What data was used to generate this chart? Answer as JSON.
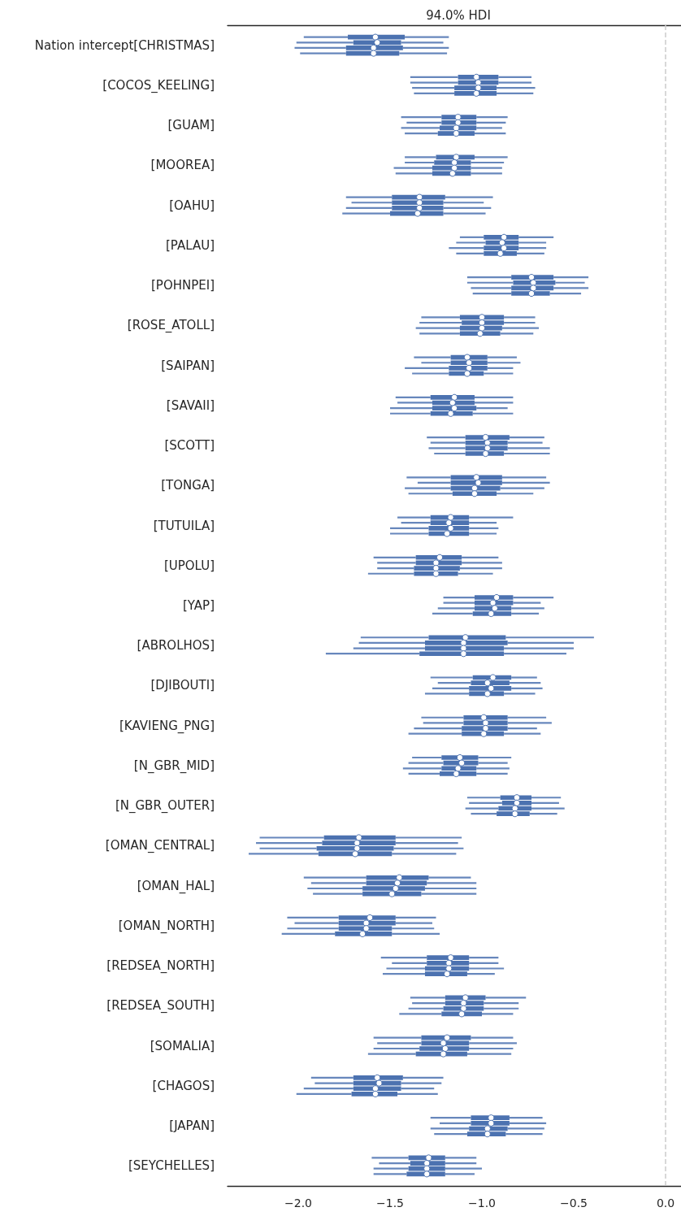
{
  "chart_data": {
    "type": "box",
    "orientation": "horizontal",
    "title": "94.0% HDI",
    "categories": [
      "Nation intercept[CHRISTMAS]",
      "[COCOS_KEELING]",
      "[GUAM]",
      "[MOOREA]",
      "[OAHU]",
      "[PALAU]",
      "[POHNPEI]",
      "[ROSE_ATOLL]",
      "[SAIPAN]",
      "[SAVAII]",
      "[SCOTT]",
      "[TONGA]",
      "[TUTUILA]",
      "[UPOLU]",
      "[YAP]",
      "[ABROLHOS]",
      "[DJIBOUTI]",
      "[KAVIENG_PNG]",
      "[N_GBR_MID]",
      "[N_GBR_OUTER]",
      "[OMAN_CENTRAL]",
      "[OMAN_HAL]",
      "[OMAN_NORTH]",
      "[REDSEA_NORTH]",
      "[REDSEA_SOUTH]",
      "[SOMALIA]",
      "[CHAGOS]",
      "[JAPAN]",
      "[SEYCHELLES]"
    ],
    "xlim": [
      -2.385,
      0.084
    ],
    "xticks": [
      {
        "value": -2,
        "label": "−2.0"
      },
      {
        "value": -1.5,
        "label": "−1.5"
      },
      {
        "value": -1,
        "label": "−1.0"
      },
      {
        "value": -0.5,
        "label": "−0.5"
      },
      {
        "value": 0,
        "label": "0.0"
      }
    ],
    "ref_lines": [
      {
        "axis": "x",
        "value": 0,
        "color": "#cccccc",
        "line_style": "dashed"
      }
    ],
    "series": [
      {
        "color": "#4c72b0",
        "boxes": [
          {
            "low": -1.97,
            "q1": -1.73,
            "median": -1.58,
            "q3": -1.42,
            "high": -1.18
          },
          {
            "low": -1.39,
            "q1": -1.13,
            "median": -1.03,
            "q3": -0.91,
            "high": -0.73
          },
          {
            "low": -1.44,
            "q1": -1.22,
            "median": -1.13,
            "q3": -1.03,
            "high": -0.86
          },
          {
            "low": -1.42,
            "q1": -1.25,
            "median": -1.14,
            "q3": -1.04,
            "high": -0.86
          },
          {
            "low": -1.74,
            "q1": -1.49,
            "median": -1.34,
            "q3": -1.2,
            "high": -0.94
          },
          {
            "low": -1.12,
            "q1": -0.99,
            "median": -0.88,
            "q3": -0.8,
            "high": -0.61
          },
          {
            "low": -1.08,
            "q1": -0.84,
            "median": -0.73,
            "q3": -0.61,
            "high": -0.42
          },
          {
            "low": -1.33,
            "q1": -1.12,
            "median": -1.0,
            "q3": -0.88,
            "high": -0.71
          },
          {
            "low": -1.37,
            "q1": -1.17,
            "median": -1.08,
            "q3": -0.97,
            "high": -0.81
          },
          {
            "low": -1.47,
            "q1": -1.28,
            "median": -1.15,
            "q3": -1.04,
            "high": -0.83
          },
          {
            "low": -1.3,
            "q1": -1.09,
            "median": -0.98,
            "q3": -0.85,
            "high": -0.66
          },
          {
            "low": -1.41,
            "q1": -1.17,
            "median": -1.03,
            "q3": -0.89,
            "high": -0.65
          },
          {
            "low": -1.46,
            "q1": -1.28,
            "median": -1.17,
            "q3": -1.07,
            "high": -0.83
          },
          {
            "low": -1.59,
            "q1": -1.36,
            "median": -1.23,
            "q3": -1.11,
            "high": -0.91
          },
          {
            "low": -1.21,
            "q1": -1.04,
            "median": -0.92,
            "q3": -0.83,
            "high": -0.61
          },
          {
            "low": -1.66,
            "q1": -1.29,
            "median": -1.09,
            "q3": -0.87,
            "high": -0.39
          },
          {
            "low": -1.28,
            "q1": -1.05,
            "median": -0.94,
            "q3": -0.84,
            "high": -0.7
          },
          {
            "low": -1.33,
            "q1": -1.1,
            "median": -0.99,
            "q3": -0.86,
            "high": -0.65
          },
          {
            "low": -1.38,
            "q1": -1.22,
            "median": -1.12,
            "q3": -1.02,
            "high": -0.84
          },
          {
            "low": -1.08,
            "q1": -0.9,
            "median": -0.81,
            "q3": -0.73,
            "high": -0.57
          },
          {
            "low": -2.21,
            "q1": -1.86,
            "median": -1.67,
            "q3": -1.47,
            "high": -1.11
          },
          {
            "low": -1.97,
            "q1": -1.63,
            "median": -1.45,
            "q3": -1.29,
            "high": -1.06
          },
          {
            "low": -2.06,
            "q1": -1.78,
            "median": -1.61,
            "q3": -1.47,
            "high": -1.25
          },
          {
            "low": -1.55,
            "q1": -1.3,
            "median": -1.17,
            "q3": -1.07,
            "high": -0.91
          },
          {
            "low": -1.39,
            "q1": -1.2,
            "median": -1.09,
            "q3": -0.98,
            "high": -0.76
          },
          {
            "low": -1.59,
            "q1": -1.33,
            "median": -1.19,
            "q3": -1.06,
            "high": -0.83
          },
          {
            "low": -1.93,
            "q1": -1.7,
            "median": -1.57,
            "q3": -1.43,
            "high": -1.21
          },
          {
            "low": -1.28,
            "q1": -1.06,
            "median": -0.95,
            "q3": -0.85,
            "high": -0.67
          },
          {
            "low": -1.6,
            "q1": -1.4,
            "median": -1.29,
            "q3": -1.2,
            "high": -1.03
          }
        ]
      },
      {
        "color": "#4c72b0",
        "boxes": [
          {
            "low": -2.01,
            "q1": -1.7,
            "median": -1.57,
            "q3": -1.44,
            "high": -1.21
          },
          {
            "low": -1.39,
            "q1": -1.13,
            "median": -1.02,
            "q3": -0.91,
            "high": -0.73
          },
          {
            "low": -1.41,
            "q1": -1.22,
            "median": -1.13,
            "q3": -1.03,
            "high": -0.87
          },
          {
            "low": -1.42,
            "q1": -1.26,
            "median": -1.15,
            "q3": -1.06,
            "high": -0.88
          },
          {
            "low": -1.71,
            "q1": -1.49,
            "median": -1.34,
            "q3": -1.21,
            "high": -0.99
          },
          {
            "low": -1.14,
            "q1": -0.98,
            "median": -0.89,
            "q3": -0.8,
            "high": -0.65
          },
          {
            "low": -1.08,
            "q1": -0.83,
            "median": -0.72,
            "q3": -0.6,
            "high": -0.44
          },
          {
            "low": -1.34,
            "q1": -1.11,
            "median": -1.0,
            "q3": -0.88,
            "high": -0.71
          },
          {
            "low": -1.33,
            "q1": -1.17,
            "median": -1.07,
            "q3": -0.97,
            "high": -0.79
          },
          {
            "low": -1.46,
            "q1": -1.27,
            "median": -1.16,
            "q3": -1.04,
            "high": -0.83
          },
          {
            "low": -1.28,
            "q1": -1.09,
            "median": -0.97,
            "q3": -0.86,
            "high": -0.67
          },
          {
            "low": -1.35,
            "q1": -1.17,
            "median": -1.02,
            "q3": -0.89,
            "high": -0.63
          },
          {
            "low": -1.44,
            "q1": -1.28,
            "median": -1.18,
            "q3": -1.07,
            "high": -0.92
          },
          {
            "low": -1.57,
            "q1": -1.36,
            "median": -1.25,
            "q3": -1.11,
            "high": -0.89
          },
          {
            "low": -1.21,
            "q1": -1.04,
            "median": -0.94,
            "q3": -0.83,
            "high": -0.68
          },
          {
            "low": -1.67,
            "q1": -1.31,
            "median": -1.1,
            "q3": -0.86,
            "high": -0.5
          },
          {
            "low": -1.24,
            "q1": -1.06,
            "median": -0.97,
            "q3": -0.85,
            "high": -0.68
          },
          {
            "low": -1.32,
            "q1": -1.1,
            "median": -0.98,
            "q3": -0.86,
            "high": -0.62
          },
          {
            "low": -1.4,
            "q1": -1.21,
            "median": -1.11,
            "q3": -1.02,
            "high": -0.86
          },
          {
            "low": -1.07,
            "q1": -0.89,
            "median": -0.81,
            "q3": -0.73,
            "high": -0.58
          },
          {
            "low": -2.23,
            "q1": -1.87,
            "median": -1.68,
            "q3": -1.47,
            "high": -1.13
          },
          {
            "low": -1.93,
            "q1": -1.63,
            "median": -1.46,
            "q3": -1.3,
            "high": -1.03
          },
          {
            "low": -2.02,
            "q1": -1.78,
            "median": -1.63,
            "q3": -1.47,
            "high": -1.27
          },
          {
            "low": -1.49,
            "q1": -1.3,
            "median": -1.18,
            "q3": -1.07,
            "high": -0.91
          },
          {
            "low": -1.38,
            "q1": -1.2,
            "median": -1.1,
            "q3": -0.99,
            "high": -0.8
          },
          {
            "low": -1.57,
            "q1": -1.33,
            "median": -1.21,
            "q3": -1.07,
            "high": -0.81
          },
          {
            "low": -1.91,
            "q1": -1.7,
            "median": -1.56,
            "q3": -1.44,
            "high": -1.22
          },
          {
            "low": -1.23,
            "q1": -1.06,
            "median": -0.95,
            "q3": -0.85,
            "high": -0.65
          },
          {
            "low": -1.56,
            "q1": -1.39,
            "median": -1.3,
            "q3": -1.2,
            "high": -1.03
          }
        ]
      },
      {
        "color": "#4c72b0",
        "boxes": [
          {
            "low": -2.02,
            "q1": -1.74,
            "median": -1.59,
            "q3": -1.43,
            "high": -1.18
          },
          {
            "low": -1.38,
            "q1": -1.15,
            "median": -1.02,
            "q3": -0.92,
            "high": -0.71
          },
          {
            "low": -1.44,
            "q1": -1.23,
            "median": -1.14,
            "q3": -1.03,
            "high": -0.89
          },
          {
            "low": -1.48,
            "q1": -1.27,
            "median": -1.15,
            "q3": -1.06,
            "high": -0.89
          },
          {
            "low": -1.74,
            "q1": -1.49,
            "median": -1.34,
            "q3": -1.21,
            "high": -0.95
          },
          {
            "low": -1.18,
            "q1": -0.99,
            "median": -0.88,
            "q3": -0.8,
            "high": -0.65
          },
          {
            "low": -1.06,
            "q1": -0.84,
            "median": -0.72,
            "q3": -0.61,
            "high": -0.42
          },
          {
            "low": -1.36,
            "q1": -1.12,
            "median": -1.0,
            "q3": -0.89,
            "high": -0.69
          },
          {
            "low": -1.42,
            "q1": -1.18,
            "median": -1.07,
            "q3": -0.97,
            "high": -0.83
          },
          {
            "low": -1.5,
            "q1": -1.27,
            "median": -1.15,
            "q3": -1.03,
            "high": -0.86
          },
          {
            "low": -1.29,
            "q1": -1.09,
            "median": -0.97,
            "q3": -0.86,
            "high": -0.63
          },
          {
            "low": -1.42,
            "q1": -1.17,
            "median": -1.04,
            "q3": -0.9,
            "high": -0.66
          },
          {
            "low": -1.5,
            "q1": -1.29,
            "median": -1.17,
            "q3": -1.07,
            "high": -0.91
          },
          {
            "low": -1.57,
            "q1": -1.37,
            "median": -1.25,
            "q3": -1.12,
            "high": -0.89
          },
          {
            "low": -1.24,
            "q1": -1.04,
            "median": -0.93,
            "q3": -0.84,
            "high": -0.66
          },
          {
            "low": -1.7,
            "q1": -1.31,
            "median": -1.1,
            "q3": -0.88,
            "high": -0.5
          },
          {
            "low": -1.27,
            "q1": -1.07,
            "median": -0.95,
            "q3": -0.84,
            "high": -0.67
          },
          {
            "low": -1.37,
            "q1": -1.11,
            "median": -0.98,
            "q3": -0.86,
            "high": -0.7
          },
          {
            "low": -1.43,
            "q1": -1.22,
            "median": -1.13,
            "q3": -1.03,
            "high": -0.85
          },
          {
            "low": -1.09,
            "q1": -0.91,
            "median": -0.82,
            "q3": -0.73,
            "high": -0.55
          },
          {
            "low": -2.21,
            "q1": -1.9,
            "median": -1.68,
            "q3": -1.48,
            "high": -1.1
          },
          {
            "low": -1.95,
            "q1": -1.65,
            "median": -1.47,
            "q3": -1.31,
            "high": -1.03
          },
          {
            "low": -2.06,
            "q1": -1.78,
            "median": -1.63,
            "q3": -1.49,
            "high": -1.26
          },
          {
            "low": -1.52,
            "q1": -1.31,
            "median": -1.18,
            "q3": -1.07,
            "high": -0.88
          },
          {
            "low": -1.4,
            "q1": -1.21,
            "median": -1.1,
            "q3": -0.99,
            "high": -0.8
          },
          {
            "low": -1.59,
            "q1": -1.34,
            "median": -1.2,
            "q3": -1.07,
            "high": -0.83
          },
          {
            "low": -1.97,
            "q1": -1.7,
            "median": -1.58,
            "q3": -1.44,
            "high": -1.26
          },
          {
            "low": -1.28,
            "q1": -1.07,
            "median": -0.97,
            "q3": -0.86,
            "high": -0.66
          },
          {
            "low": -1.59,
            "q1": -1.4,
            "median": -1.3,
            "q3": -1.2,
            "high": -1.0
          }
        ]
      },
      {
        "color": "#4c72b0",
        "boxes": [
          {
            "low": -1.99,
            "q1": -1.74,
            "median": -1.59,
            "q3": -1.45,
            "high": -1.19
          },
          {
            "low": -1.37,
            "q1": -1.15,
            "median": -1.03,
            "q3": -0.92,
            "high": -0.72
          },
          {
            "low": -1.42,
            "q1": -1.24,
            "median": -1.14,
            "q3": -1.04,
            "high": -0.87
          },
          {
            "low": -1.47,
            "q1": -1.27,
            "median": -1.16,
            "q3": -1.06,
            "high": -0.89
          },
          {
            "low": -1.76,
            "q1": -1.5,
            "median": -1.35,
            "q3": -1.21,
            "high": -0.98
          },
          {
            "low": -1.14,
            "q1": -0.99,
            "median": -0.9,
            "q3": -0.81,
            "high": -0.66
          },
          {
            "low": -1.05,
            "q1": -0.84,
            "median": -0.73,
            "q3": -0.63,
            "high": -0.46
          },
          {
            "low": -1.34,
            "q1": -1.12,
            "median": -1.01,
            "q3": -0.9,
            "high": -0.72
          },
          {
            "low": -1.38,
            "q1": -1.18,
            "median": -1.08,
            "q3": -0.99,
            "high": -0.83
          },
          {
            "low": -1.5,
            "q1": -1.28,
            "median": -1.17,
            "q3": -1.05,
            "high": -0.83
          },
          {
            "low": -1.26,
            "q1": -1.09,
            "median": -0.98,
            "q3": -0.88,
            "high": -0.63
          },
          {
            "low": -1.4,
            "q1": -1.16,
            "median": -1.04,
            "q3": -0.92,
            "high": -0.72
          },
          {
            "low": -1.5,
            "q1": -1.29,
            "median": -1.19,
            "q3": -1.07,
            "high": -0.92
          },
          {
            "low": -1.62,
            "q1": -1.37,
            "median": -1.25,
            "q3": -1.13,
            "high": -0.94
          },
          {
            "low": -1.27,
            "q1": -1.05,
            "median": -0.95,
            "q3": -0.84,
            "high": -0.69
          },
          {
            "low": -1.85,
            "q1": -1.34,
            "median": -1.1,
            "q3": -0.88,
            "high": -0.54
          },
          {
            "low": -1.31,
            "q1": -1.07,
            "median": -0.97,
            "q3": -0.88,
            "high": -0.71
          },
          {
            "low": -1.4,
            "q1": -1.11,
            "median": -0.99,
            "q3": -0.88,
            "high": -0.68
          },
          {
            "low": -1.4,
            "q1": -1.23,
            "median": -1.14,
            "q3": -1.03,
            "high": -0.86
          },
          {
            "low": -1.06,
            "q1": -0.92,
            "median": -0.82,
            "q3": -0.74,
            "high": -0.59
          },
          {
            "low": -2.27,
            "q1": -1.89,
            "median": -1.69,
            "q3": -1.49,
            "high": -1.14
          },
          {
            "low": -1.92,
            "q1": -1.65,
            "median": -1.49,
            "q3": -1.33,
            "high": -1.03
          },
          {
            "low": -2.09,
            "q1": -1.8,
            "median": -1.65,
            "q3": -1.49,
            "high": -1.23
          },
          {
            "low": -1.54,
            "q1": -1.31,
            "median": -1.19,
            "q3": -1.08,
            "high": -0.93
          },
          {
            "low": -1.45,
            "q1": -1.22,
            "median": -1.11,
            "q3": -1.0,
            "high": -0.83
          },
          {
            "low": -1.62,
            "q1": -1.36,
            "median": -1.21,
            "q3": -1.08,
            "high": -0.84
          },
          {
            "low": -2.01,
            "q1": -1.71,
            "median": -1.58,
            "q3": -1.46,
            "high": -1.24
          },
          {
            "low": -1.26,
            "q1": -1.08,
            "median": -0.97,
            "q3": -0.87,
            "high": -0.67
          },
          {
            "low": -1.59,
            "q1": -1.41,
            "median": -1.3,
            "q3": -1.2,
            "high": -1.04
          }
        ]
      }
    ]
  }
}
